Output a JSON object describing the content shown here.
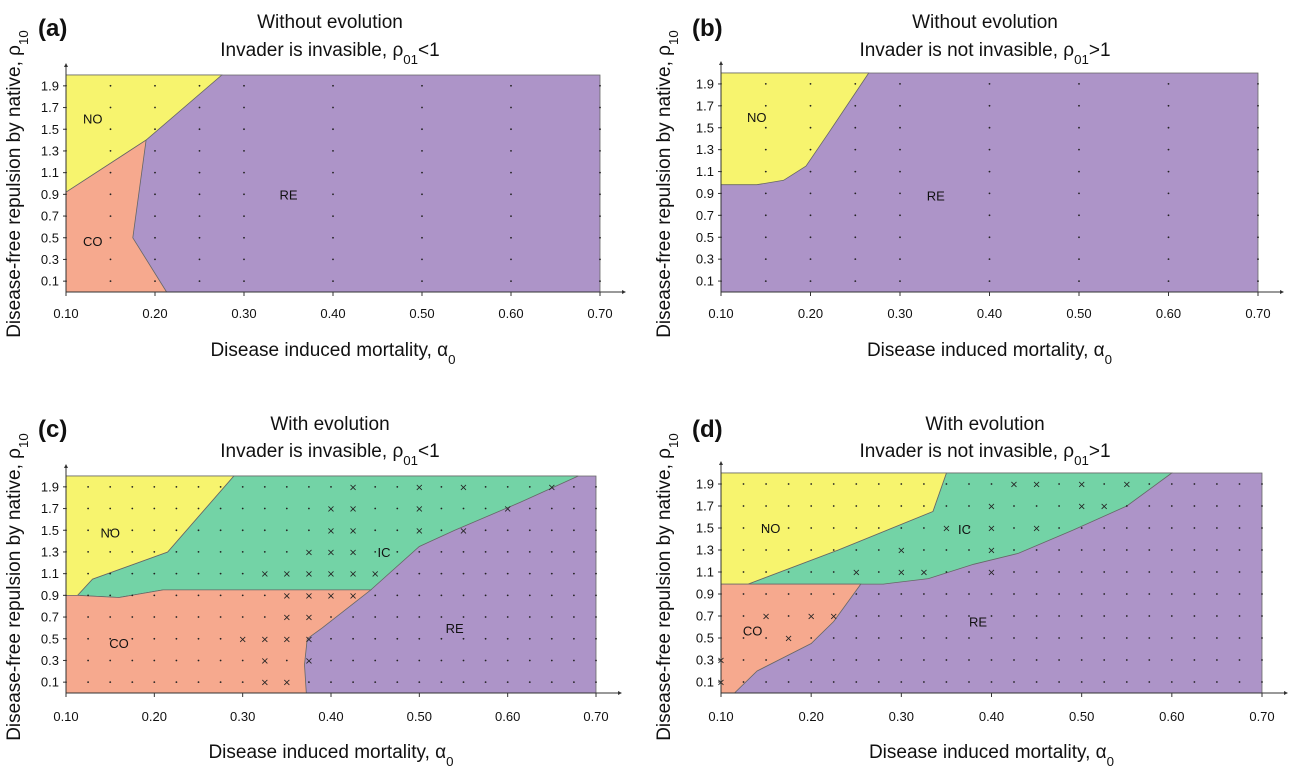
{
  "colors": {
    "NO": "#f7f46e",
    "CO": "#f6a98e",
    "RE": "#ad94c8",
    "IC": "#73d3a6",
    "border": "#666666"
  },
  "chart_data": [
    {
      "type": "area",
      "panel": "(a)",
      "title": "Without evolution",
      "subtitle": "Invader is invasible, ρ01<1",
      "xlabel": "Disease induced mortality, α0",
      "ylabel": "Disease-free repulsion by native, ρ10",
      "xlim": [
        0.1,
        0.7
      ],
      "ylim": [
        0.0,
        2.0
      ],
      "xticks": [
        "0.10",
        "0.20",
        "0.30",
        "0.40",
        "0.50",
        "0.60",
        "0.70"
      ],
      "yticks": [
        "0.1",
        "0.3",
        "0.5",
        "0.7",
        "0.9",
        "1.1",
        "1.3",
        "1.5",
        "1.7",
        "1.9"
      ],
      "regions": [
        {
          "name": "RE",
          "label": "RE",
          "label_at": [
            0.35,
            0.9
          ],
          "polygon": [
            [
              0.1,
              0
            ],
            [
              0.7,
              0
            ],
            [
              0.7,
              2.0
            ],
            [
              0.1,
              2.0
            ]
          ]
        },
        {
          "name": "NO",
          "label": "NO",
          "label_at": [
            0.13,
            1.6
          ],
          "polygon": [
            [
              0.1,
              0.92
            ],
            [
              0.19,
              1.4
            ],
            [
              0.275,
              2.0
            ],
            [
              0.1,
              2.0
            ]
          ]
        },
        {
          "name": "CO",
          "label": "CO",
          "label_at": [
            0.13,
            0.47
          ],
          "polygon": [
            [
              0.1,
              0
            ],
            [
              0.213,
              0
            ],
            [
              0.175,
              0.5
            ],
            [
              0.19,
              1.4
            ],
            [
              0.1,
              0.92
            ]
          ]
        }
      ],
      "x_markers": []
    },
    {
      "type": "area",
      "panel": "(b)",
      "title": "Without evolution",
      "subtitle": "Invader is not invasible, ρ01>1",
      "xlabel": "Disease induced mortality, α0",
      "ylabel": "Disease-free repulsion by native, ρ10",
      "xlim": [
        0.1,
        0.7
      ],
      "ylim": [
        0.0,
        2.0
      ],
      "xticks": [
        "0.10",
        "0.20",
        "0.30",
        "0.40",
        "0.50",
        "0.60",
        "0.70"
      ],
      "yticks": [
        "0.1",
        "0.3",
        "0.5",
        "0.7",
        "0.9",
        "1.1",
        "1.3",
        "1.5",
        "1.7",
        "1.9"
      ],
      "regions": [
        {
          "name": "RE",
          "label": "RE",
          "label_at": [
            0.34,
            0.88
          ],
          "polygon": [
            [
              0.1,
              0
            ],
            [
              0.7,
              0
            ],
            [
              0.7,
              2.0
            ],
            [
              0.1,
              2.0
            ]
          ]
        },
        {
          "name": "NO",
          "label": "NO",
          "label_at": [
            0.14,
            1.6
          ],
          "polygon": [
            [
              0.1,
              0.98
            ],
            [
              0.14,
              0.98
            ],
            [
              0.17,
              1.02
            ],
            [
              0.195,
              1.15
            ],
            [
              0.22,
              1.45
            ],
            [
              0.265,
              2.0
            ],
            [
              0.1,
              2.0
            ]
          ]
        }
      ],
      "x_markers": []
    },
    {
      "type": "area",
      "panel": "(c)",
      "title": "With evolution",
      "subtitle": "Invader is invasible, ρ01<1",
      "xlabel": "Disease induced mortality, α0",
      "ylabel": "Disease-free repulsion by native, ρ10",
      "xlim": [
        0.1,
        0.7
      ],
      "ylim": [
        0.0,
        2.0
      ],
      "xticks": [
        "0.10",
        "0.20",
        "0.30",
        "0.40",
        "0.50",
        "0.60",
        "0.70"
      ],
      "yticks": [
        "0.1",
        "0.3",
        "0.5",
        "0.7",
        "0.9",
        "1.1",
        "1.3",
        "1.5",
        "1.7",
        "1.9"
      ],
      "regions": [
        {
          "name": "RE",
          "label": "RE",
          "label_at": [
            0.54,
            0.6
          ],
          "polygon": [
            [
              0.1,
              0
            ],
            [
              0.7,
              0
            ],
            [
              0.7,
              2.0
            ],
            [
              0.1,
              2.0
            ]
          ]
        },
        {
          "name": "IC",
          "label": "IC",
          "label_at": [
            0.46,
            1.3
          ],
          "polygon": [
            [
              0.113,
              0.9
            ],
            [
              0.13,
              1.05
            ],
            [
              0.215,
              1.3
            ],
            [
              0.29,
              2.0
            ],
            [
              0.68,
              2.0
            ],
            [
              0.615,
              1.76
            ],
            [
              0.54,
              1.5
            ],
            [
              0.5,
              1.35
            ],
            [
              0.445,
              0.95
            ],
            [
              0.21,
              0.95
            ],
            [
              0.16,
              0.88
            ]
          ]
        },
        {
          "name": "NO",
          "label": "NO",
          "label_at": [
            0.15,
            1.48
          ],
          "polygon": [
            [
              0.1,
              0.9
            ],
            [
              0.113,
              0.9
            ],
            [
              0.13,
              1.05
            ],
            [
              0.215,
              1.3
            ],
            [
              0.29,
              2.0
            ],
            [
              0.1,
              2.0
            ]
          ]
        },
        {
          "name": "CO",
          "label": "CO",
          "label_at": [
            0.16,
            0.46
          ],
          "polygon": [
            [
              0.1,
              0
            ],
            [
              0.372,
              0
            ],
            [
              0.37,
              0.26
            ],
            [
              0.373,
              0.5
            ],
            [
              0.39,
              0.6
            ],
            [
              0.445,
              0.95
            ],
            [
              0.21,
              0.95
            ],
            [
              0.16,
              0.88
            ],
            [
              0.113,
              0.9
            ],
            [
              0.1,
              0.9
            ]
          ]
        }
      ],
      "x_markers": [
        [
          0.325,
          0.1
        ],
        [
          0.35,
          0.1
        ],
        [
          0.325,
          0.3
        ],
        [
          0.375,
          0.3
        ],
        [
          0.3,
          0.5
        ],
        [
          0.325,
          0.5
        ],
        [
          0.35,
          0.5
        ],
        [
          0.375,
          0.5
        ],
        [
          0.35,
          0.7
        ],
        [
          0.375,
          0.7
        ],
        [
          0.35,
          0.9
        ],
        [
          0.375,
          0.9
        ],
        [
          0.4,
          0.9
        ],
        [
          0.425,
          0.9
        ],
        [
          0.325,
          1.1
        ],
        [
          0.35,
          1.1
        ],
        [
          0.375,
          1.1
        ],
        [
          0.4,
          1.1
        ],
        [
          0.425,
          1.1
        ],
        [
          0.45,
          1.1
        ],
        [
          0.375,
          1.3
        ],
        [
          0.4,
          1.3
        ],
        [
          0.425,
          1.3
        ],
        [
          0.4,
          1.5
        ],
        [
          0.425,
          1.5
        ],
        [
          0.5,
          1.5
        ],
        [
          0.55,
          1.5
        ],
        [
          0.4,
          1.7
        ],
        [
          0.425,
          1.7
        ],
        [
          0.5,
          1.7
        ],
        [
          0.6,
          1.7
        ],
        [
          0.425,
          1.9
        ],
        [
          0.5,
          1.9
        ],
        [
          0.55,
          1.9
        ],
        [
          0.65,
          1.9
        ]
      ]
    },
    {
      "type": "area",
      "panel": "(d)",
      "title": "With evolution",
      "subtitle": "Invader is not invasible, ρ01>1",
      "xlabel": "Disease induced mortality, α0",
      "ylabel": "Disease-free repulsion by native, ρ10",
      "xlim": [
        0.1,
        0.7
      ],
      "ylim": [
        0.0,
        2.0
      ],
      "xticks": [
        "0.10",
        "0.20",
        "0.30",
        "0.40",
        "0.50",
        "0.60",
        "0.70"
      ],
      "yticks": [
        "0.1",
        "0.3",
        "0.5",
        "0.7",
        "0.9",
        "1.1",
        "1.3",
        "1.5",
        "1.7",
        "1.9"
      ],
      "regions": [
        {
          "name": "RE",
          "label": "RE",
          "label_at": [
            0.385,
            0.65
          ],
          "polygon": [
            [
              0.1,
              0
            ],
            [
              0.7,
              0
            ],
            [
              0.7,
              2.0
            ],
            [
              0.1,
              2.0
            ]
          ]
        },
        {
          "name": "IC",
          "label": "IC",
          "label_at": [
            0.37,
            1.49
          ],
          "polygon": [
            [
              0.1,
              0.99
            ],
            [
              0.13,
              0.99
            ],
            [
              0.23,
              1.3
            ],
            [
              0.335,
              1.65
            ],
            [
              0.35,
              2.0
            ],
            [
              0.6,
              2.0
            ],
            [
              0.55,
              1.7
            ],
            [
              0.49,
              1.48
            ],
            [
              0.43,
              1.27
            ],
            [
              0.38,
              1.17
            ],
            [
              0.33,
              1.04
            ],
            [
              0.28,
              0.99
            ],
            [
              0.255,
              0.99
            ]
          ]
        },
        {
          "name": "NO",
          "label": "NO",
          "label_at": [
            0.155,
            1.5
          ],
          "polygon": [
            [
              0.1,
              0.99
            ],
            [
              0.13,
              0.99
            ],
            [
              0.23,
              1.3
            ],
            [
              0.335,
              1.65
            ],
            [
              0.35,
              2.0
            ],
            [
              0.1,
              2.0
            ]
          ]
        },
        {
          "name": "CO",
          "label": "CO",
          "label_at": [
            0.135,
            0.57
          ],
          "polygon": [
            [
              0.1,
              0
            ],
            [
              0.115,
              0
            ],
            [
              0.14,
              0.2
            ],
            [
              0.2,
              0.45
            ],
            [
              0.225,
              0.65
            ],
            [
              0.255,
              0.99
            ],
            [
              0.1,
              0.99
            ]
          ]
        }
      ],
      "x_markers": [
        [
          0.1,
          0.1
        ],
        [
          0.1,
          0.3
        ],
        [
          0.175,
          0.5
        ],
        [
          0.15,
          0.7
        ],
        [
          0.2,
          0.7
        ],
        [
          0.225,
          0.7
        ],
        [
          0.25,
          1.1
        ],
        [
          0.3,
          1.1
        ],
        [
          0.325,
          1.1
        ],
        [
          0.4,
          1.1
        ],
        [
          0.3,
          1.3
        ],
        [
          0.4,
          1.3
        ],
        [
          0.35,
          1.5
        ],
        [
          0.4,
          1.5
        ],
        [
          0.45,
          1.5
        ],
        [
          0.4,
          1.7
        ],
        [
          0.5,
          1.7
        ],
        [
          0.525,
          1.7
        ],
        [
          0.425,
          1.9
        ],
        [
          0.45,
          1.9
        ],
        [
          0.5,
          1.9
        ],
        [
          0.55,
          1.9
        ]
      ]
    }
  ]
}
